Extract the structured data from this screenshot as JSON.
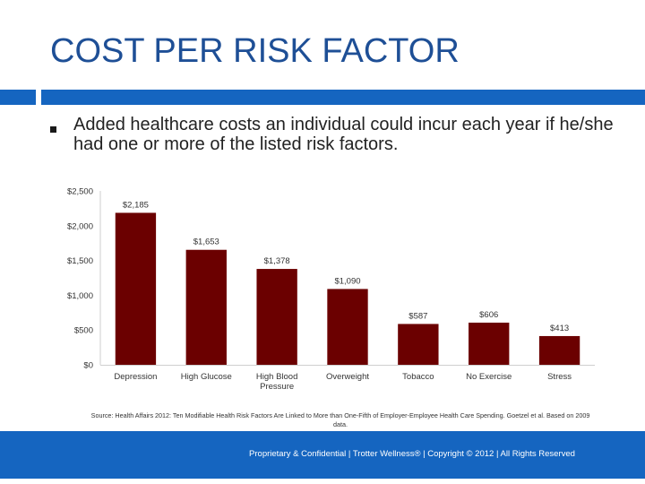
{
  "slide": {
    "title": "COST PER RISK FACTOR",
    "bullet": "Added healthcare costs an individual could incur each year if he/she had one or more of the listed risk factors.",
    "source": "Source: Health Affairs 2012: Ten Modifiable Health Risk Factors Are Linked to More than One-Fifth of Employer-Employee Health Care Spending. Goetzel et al. Based on 2009 data.",
    "footer": "Proprietary & Confidential | Trotter Wellness® | Copyright © 2012 | All Rights Reserved",
    "colors": {
      "accent": "#1565c0",
      "title": "#1e4f96",
      "bar": "#6b0000"
    }
  },
  "chart_data": {
    "type": "bar",
    "title": "",
    "xlabel": "",
    "ylabel": "",
    "categories": [
      "Depression",
      "High Glucose",
      "High Blood Pressure",
      "Overweight",
      "Tobacco",
      "No Exercise",
      "Stress"
    ],
    "category_lines": [
      [
        "Depression"
      ],
      [
        "High Glucose"
      ],
      [
        "High Blood",
        "Pressure"
      ],
      [
        "Overweight"
      ],
      [
        "Tobacco"
      ],
      [
        "No Exercise"
      ],
      [
        "Stress"
      ]
    ],
    "values": [
      2185,
      1653,
      1378,
      1090,
      587,
      606,
      413
    ],
    "value_labels": [
      "$2,185",
      "$1,653",
      "$1,378",
      "$1,090",
      "$587",
      "$606",
      "$413"
    ],
    "yticks": [
      0,
      500,
      1000,
      1500,
      2000,
      2500
    ],
    "ytick_labels": [
      "$0",
      "$500",
      "$1,000",
      "$1,500",
      "$2,000",
      "$2,500"
    ],
    "ylim": [
      0,
      2500
    ],
    "grid": false,
    "legend": "none"
  }
}
